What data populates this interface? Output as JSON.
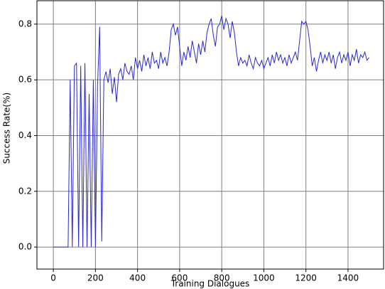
{
  "chart_data": {
    "type": "line",
    "xlabel": "Training Dialogues",
    "ylabel": "Success Rate(%)",
    "color": "#2828d0",
    "grid": true,
    "xlim": [
      -78,
      1569
    ],
    "ylim": [
      -0.079,
      0.884
    ],
    "xticks": [
      0,
      200,
      400,
      600,
      800,
      1000,
      1200,
      1400
    ],
    "yticks": [
      {
        "value": 0,
        "label": "0.0"
      },
      0.2,
      0.4,
      0.6,
      0.8
    ],
    "x": [
      0,
      10,
      20,
      30,
      40,
      50,
      60,
      70,
      80,
      90,
      100,
      110,
      120,
      130,
      140,
      150,
      160,
      170,
      180,
      190,
      200,
      210,
      220,
      230,
      240,
      250,
      260,
      270,
      280,
      290,
      300,
      310,
      320,
      330,
      340,
      350,
      360,
      370,
      380,
      390,
      400,
      410,
      420,
      430,
      440,
      450,
      460,
      470,
      480,
      490,
      500,
      510,
      520,
      530,
      540,
      550,
      560,
      570,
      580,
      590,
      600,
      610,
      620,
      630,
      640,
      650,
      660,
      670,
      680,
      690,
      700,
      710,
      720,
      730,
      740,
      750,
      760,
      770,
      780,
      790,
      800,
      810,
      820,
      830,
      840,
      850,
      860,
      870,
      880,
      890,
      900,
      910,
      920,
      930,
      940,
      950,
      960,
      970,
      980,
      990,
      1000,
      1010,
      1020,
      1030,
      1040,
      1050,
      1060,
      1070,
      1080,
      1090,
      1100,
      1110,
      1120,
      1130,
      1140,
      1150,
      1160,
      1170,
      1180,
      1190,
      1200,
      1210,
      1220,
      1230,
      1240,
      1250,
      1260,
      1270,
      1280,
      1290,
      1300,
      1310,
      1320,
      1330,
      1340,
      1350,
      1360,
      1370,
      1380,
      1390,
      1400,
      1410,
      1420,
      1430,
      1440,
      1450,
      1460,
      1470,
      1480,
      1490,
      1500
    ],
    "values": [
      0,
      0,
      0,
      0,
      0,
      0,
      0,
      0,
      0.6,
      0,
      0.65,
      0.66,
      0,
      0.65,
      0,
      0.66,
      0,
      0.55,
      0,
      0.6,
      0,
      0.58,
      0.79,
      0.02,
      0.6,
      0.63,
      0.59,
      0.64,
      0.55,
      0.61,
      0.52,
      0.62,
      0.64,
      0.6,
      0.66,
      0.63,
      0.62,
      0.65,
      0.6,
      0.68,
      0.64,
      0.67,
      0.63,
      0.69,
      0.65,
      0.68,
      0.64,
      0.7,
      0.66,
      0.67,
      0.64,
      0.7,
      0.66,
      0.68,
      0.65,
      0.7,
      0.78,
      0.8,
      0.76,
      0.79,
      0.72,
      0.65,
      0.7,
      0.67,
      0.72,
      0.68,
      0.74,
      0.7,
      0.66,
      0.73,
      0.69,
      0.74,
      0.7,
      0.77,
      0.8,
      0.82,
      0.76,
      0.72,
      0.79,
      0.8,
      0.83,
      0.78,
      0.82,
      0.8,
      0.75,
      0.81,
      0.77,
      0.7,
      0.65,
      0.68,
      0.66,
      0.67,
      0.65,
      0.69,
      0.66,
      0.64,
      0.68,
      0.66,
      0.65,
      0.67,
      0.64,
      0.66,
      0.68,
      0.65,
      0.69,
      0.66,
      0.7,
      0.67,
      0.69,
      0.66,
      0.68,
      0.65,
      0.69,
      0.66,
      0.68,
      0.7,
      0.67,
      0.74,
      0.81,
      0.8,
      0.81,
      0.78,
      0.72,
      0.65,
      0.68,
      0.63,
      0.67,
      0.7,
      0.66,
      0.69,
      0.67,
      0.7,
      0.66,
      0.69,
      0.64,
      0.68,
      0.7,
      0.66,
      0.69,
      0.67,
      0.7,
      0.65,
      0.69,
      0.67,
      0.71,
      0.66,
      0.69,
      0.68,
      0.7,
      0.67,
      0.68
    ]
  }
}
